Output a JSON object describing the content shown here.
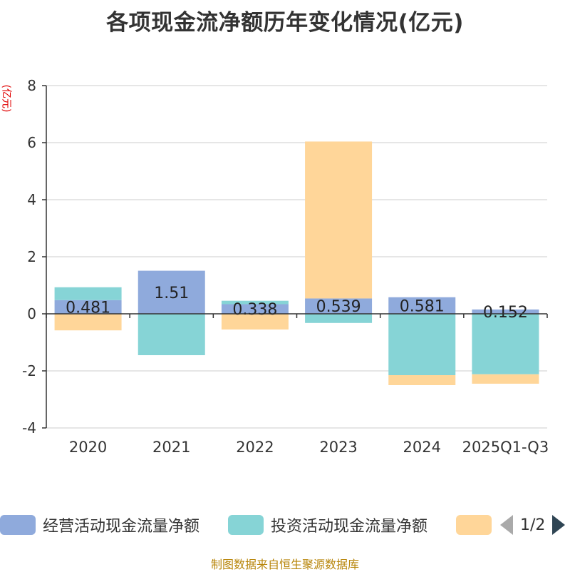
{
  "chart_data": {
    "type": "bar",
    "stacked": true,
    "title": "各项现金流净额历年变化情况(亿元)",
    "ylabel": "(亿元)",
    "categories": [
      "2020",
      "2021",
      "2022",
      "2023",
      "2024",
      "2025Q1-Q3"
    ],
    "ylim": [
      -4,
      8
    ],
    "yticks": [
      -4,
      -2,
      0,
      2,
      4,
      6,
      8
    ],
    "grid": true,
    "series": [
      {
        "name": "经营活动现金流量净额",
        "color": "#8faadc",
        "values": [
          0.481,
          1.51,
          0.338,
          0.539,
          0.581,
          0.152
        ],
        "labels": [
          "0.481",
          "1.51",
          "0.338",
          "0.539",
          "0.581",
          "0.152"
        ]
      },
      {
        "name": "投资活动现金流量净额",
        "color": "#86d4d6",
        "values": [
          0.45,
          -1.45,
          0.12,
          -0.32,
          -2.15,
          -2.12
        ]
      },
      {
        "name": "",
        "color": "#ffd699",
        "values": [
          -0.58,
          0,
          -0.55,
          5.5,
          -0.35,
          -0.33
        ]
      }
    ],
    "legend": {
      "position": "bottom",
      "page": "1/2"
    },
    "source": "制图数据来自恒生聚源数据库"
  }
}
